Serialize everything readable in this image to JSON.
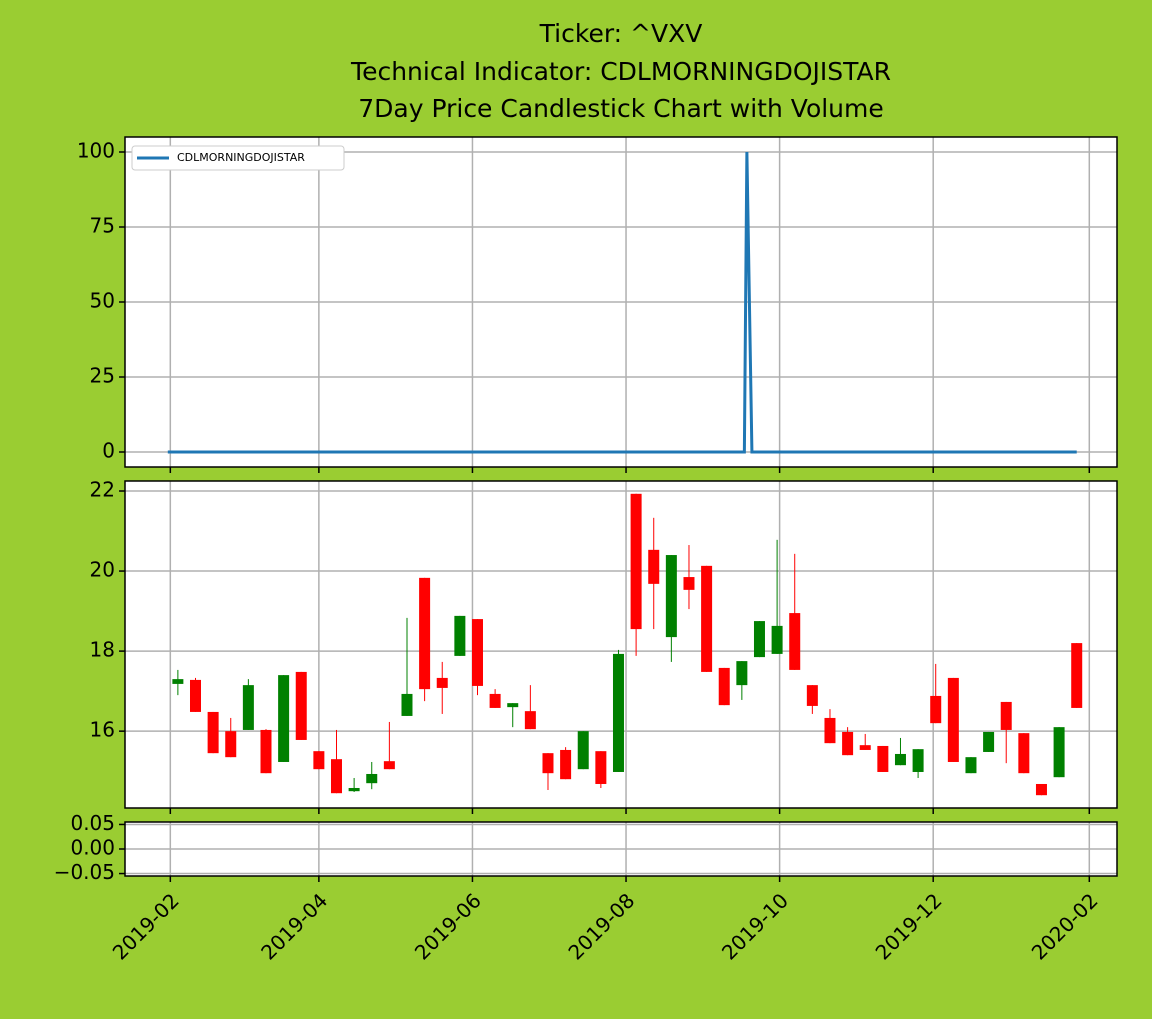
{
  "chart_data": [
    {
      "type": "line",
      "title": "Ticker: ^VXV",
      "subtitle": [
        "Technical Indicator: CDLMORNINGDOJISTAR",
        "7Day Price Candlestick Chart with Volume"
      ],
      "x": [
        "2019-01-31",
        "2019-09-17",
        "2019-09-18",
        "2019-09-20",
        "2020-01-27"
      ],
      "series": [
        {
          "name": "CDLMORNINGDOJISTAR",
          "color": "#1f77b4",
          "values": [
            0,
            0,
            100,
            0,
            0
          ]
        }
      ],
      "ylim": [
        -5,
        105
      ],
      "yticks": [
        0,
        25,
        50,
        75,
        100
      ],
      "grid": true,
      "legend": "upper left"
    },
    {
      "type": "candlestick",
      "x": [
        "2019-02-04",
        "2019-02-11",
        "2019-02-18",
        "2019-02-25",
        "2019-03-04",
        "2019-03-11",
        "2019-03-18",
        "2019-03-25",
        "2019-04-01",
        "2019-04-08",
        "2019-04-15",
        "2019-04-22",
        "2019-04-29",
        "2019-05-06",
        "2019-05-13",
        "2019-05-20",
        "2019-05-27",
        "2019-06-03",
        "2019-06-10",
        "2019-06-17",
        "2019-06-24",
        "2019-07-01",
        "2019-07-08",
        "2019-07-15",
        "2019-07-22",
        "2019-07-29",
        "2019-08-05",
        "2019-08-12",
        "2019-08-19",
        "2019-08-26",
        "2019-09-02",
        "2019-09-09",
        "2019-09-16",
        "2019-09-23",
        "2019-09-30",
        "2019-10-07",
        "2019-10-14",
        "2019-10-21",
        "2019-10-28",
        "2019-11-04",
        "2019-11-11",
        "2019-11-18",
        "2019-11-25",
        "2019-12-02",
        "2019-12-09",
        "2019-12-16",
        "2019-12-23",
        "2019-12-30",
        "2020-01-06",
        "2020-01-13",
        "2020-01-20",
        "2020-01-27"
      ],
      "open": [
        17.18,
        17.28,
        16.48,
        16.0,
        16.03,
        16.03,
        15.23,
        17.48,
        15.5,
        15.3,
        14.5,
        14.7,
        15.25,
        16.38,
        19.83,
        17.33,
        17.88,
        18.8,
        16.93,
        16.6,
        16.5,
        15.45,
        15.53,
        15.05,
        15.5,
        14.98,
        21.93,
        20.53,
        18.35,
        19.85,
        20.13,
        17.58,
        17.15,
        17.85,
        17.93,
        18.95,
        17.15,
        16.33,
        15.98,
        15.65,
        15.63,
        15.15,
        14.98,
        16.88,
        17.33,
        14.95,
        15.48,
        16.73,
        15.95,
        14.68,
        14.85,
        18.2
      ],
      "high": [
        17.53,
        17.33,
        16.48,
        16.33,
        17.3,
        16.05,
        17.4,
        17.48,
        15.5,
        16.03,
        14.83,
        15.23,
        16.23,
        18.83,
        19.83,
        17.73,
        18.88,
        18.8,
        17.05,
        16.7,
        17.15,
        15.45,
        15.6,
        16.0,
        15.5,
        18.03,
        21.93,
        21.33,
        20.4,
        20.65,
        20.13,
        17.58,
        17.75,
        18.75,
        20.78,
        20.43,
        17.15,
        16.55,
        16.1,
        15.93,
        15.63,
        15.83,
        15.55,
        17.68,
        17.33,
        15.35,
        15.98,
        16.73,
        15.95,
        14.68,
        16.1,
        18.2
      ],
      "low": [
        16.9,
        16.48,
        15.45,
        15.35,
        16.03,
        14.95,
        15.23,
        15.78,
        15.05,
        14.45,
        14.48,
        14.55,
        15.05,
        16.38,
        16.75,
        16.43,
        17.88,
        16.9,
        16.58,
        16.1,
        16.05,
        14.53,
        14.8,
        15.05,
        14.58,
        14.98,
        17.88,
        18.55,
        17.73,
        19.05,
        17.48,
        16.65,
        16.78,
        17.85,
        17.93,
        17.53,
        16.43,
        15.7,
        15.4,
        15.53,
        14.98,
        15.15,
        14.83,
        16.2,
        15.23,
        14.95,
        15.48,
        15.2,
        14.95,
        14.4,
        14.85,
        16.58
      ],
      "close": [
        17.3,
        16.48,
        15.45,
        15.35,
        17.15,
        14.95,
        17.4,
        15.78,
        15.05,
        14.45,
        14.58,
        14.93,
        15.05,
        16.93,
        17.05,
        17.08,
        18.88,
        17.13,
        16.58,
        16.7,
        16.05,
        14.95,
        14.8,
        16.0,
        14.68,
        17.93,
        18.55,
        19.68,
        20.4,
        19.53,
        17.48,
        16.65,
        17.75,
        18.75,
        18.63,
        17.53,
        16.63,
        15.7,
        15.4,
        15.53,
        14.98,
        15.43,
        15.55,
        16.2,
        15.23,
        15.35,
        15.98,
        16.03,
        14.95,
        14.4,
        16.1,
        16.58
      ],
      "up_color": "green",
      "down_color": "red",
      "ylim": [
        14.08,
        22.25
      ],
      "yticks": [
        16,
        18,
        20,
        22
      ],
      "grid": true
    },
    {
      "type": "bar",
      "xlim": [
        "2019-01-14",
        "2020-02-12"
      ],
      "xticks": [
        "2019-02",
        "2019-04",
        "2019-06",
        "2019-08",
        "2019-10",
        "2019-12",
        "2020-02"
      ],
      "ylim": [
        -0.055,
        0.055
      ],
      "yticks": [
        {
          "value": -0.05,
          "label": "−0.05"
        },
        {
          "value": 0,
          "label": "0.00"
        },
        {
          "value": 0.05,
          "label": "0.05"
        }
      ],
      "grid": true
    }
  ]
}
